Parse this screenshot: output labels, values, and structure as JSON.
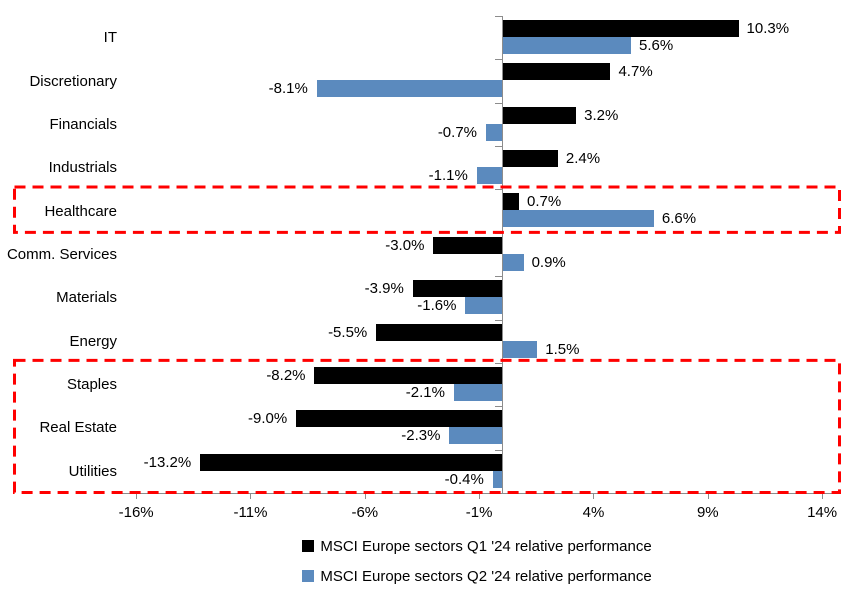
{
  "chart_data": {
    "type": "bar",
    "orientation": "horizontal",
    "title": "",
    "categories": [
      "IT",
      "Discretionary",
      "Financials",
      "Industrials",
      "Healthcare",
      "Comm. Services",
      "Materials",
      "Energy",
      "Staples",
      "Real Estate",
      "Utilities"
    ],
    "series": [
      {
        "name": "MSCI Europe sectors Q1 '24 relative performance",
        "color": "#000000",
        "values": [
          10.3,
          4.7,
          3.2,
          2.4,
          0.7,
          -3.0,
          -3.9,
          -5.5,
          -8.2,
          -9.0,
          -13.2
        ],
        "labels": [
          "10.3%",
          "4.7%",
          "3.2%",
          "2.4%",
          "0.7%",
          "-3.0%",
          "-3.9%",
          "-5.5%",
          "-8.2%",
          "-9.0%",
          "-13.2%"
        ]
      },
      {
        "name": "MSCI Europe sectors Q2 '24 relative performance",
        "color": "#5B8ABE",
        "values": [
          5.6,
          -8.1,
          -0.7,
          -1.1,
          6.6,
          0.9,
          -1.6,
          1.5,
          -2.1,
          -2.3,
          -0.4
        ],
        "labels": [
          "5.6%",
          "-8.1%",
          "-0.7%",
          "-1.1%",
          "6.6%",
          "0.9%",
          "-1.6%",
          "1.5%",
          "-2.1%",
          "-2.3%",
          "-0.4%"
        ]
      }
    ],
    "x_ticks": [
      {
        "label": "-16%",
        "value": -16
      },
      {
        "label": "-11%",
        "value": -11
      },
      {
        "label": "-6%",
        "value": -6
      },
      {
        "label": "-1%",
        "value": -1
      },
      {
        "label": "4%",
        "value": 4
      },
      {
        "label": "9%",
        "value": 9
      },
      {
        "label": "14%",
        "value": 14
      }
    ],
    "xlim": [
      -17,
      14.8
    ],
    "grid": false,
    "legend_position": "bottom-center",
    "highlights": {
      "color": "#FF0000",
      "boxes": [
        {
          "categories": [
            "Healthcare"
          ]
        },
        {
          "categories": [
            "Staples",
            "Real Estate",
            "Utilities"
          ]
        }
      ]
    }
  }
}
